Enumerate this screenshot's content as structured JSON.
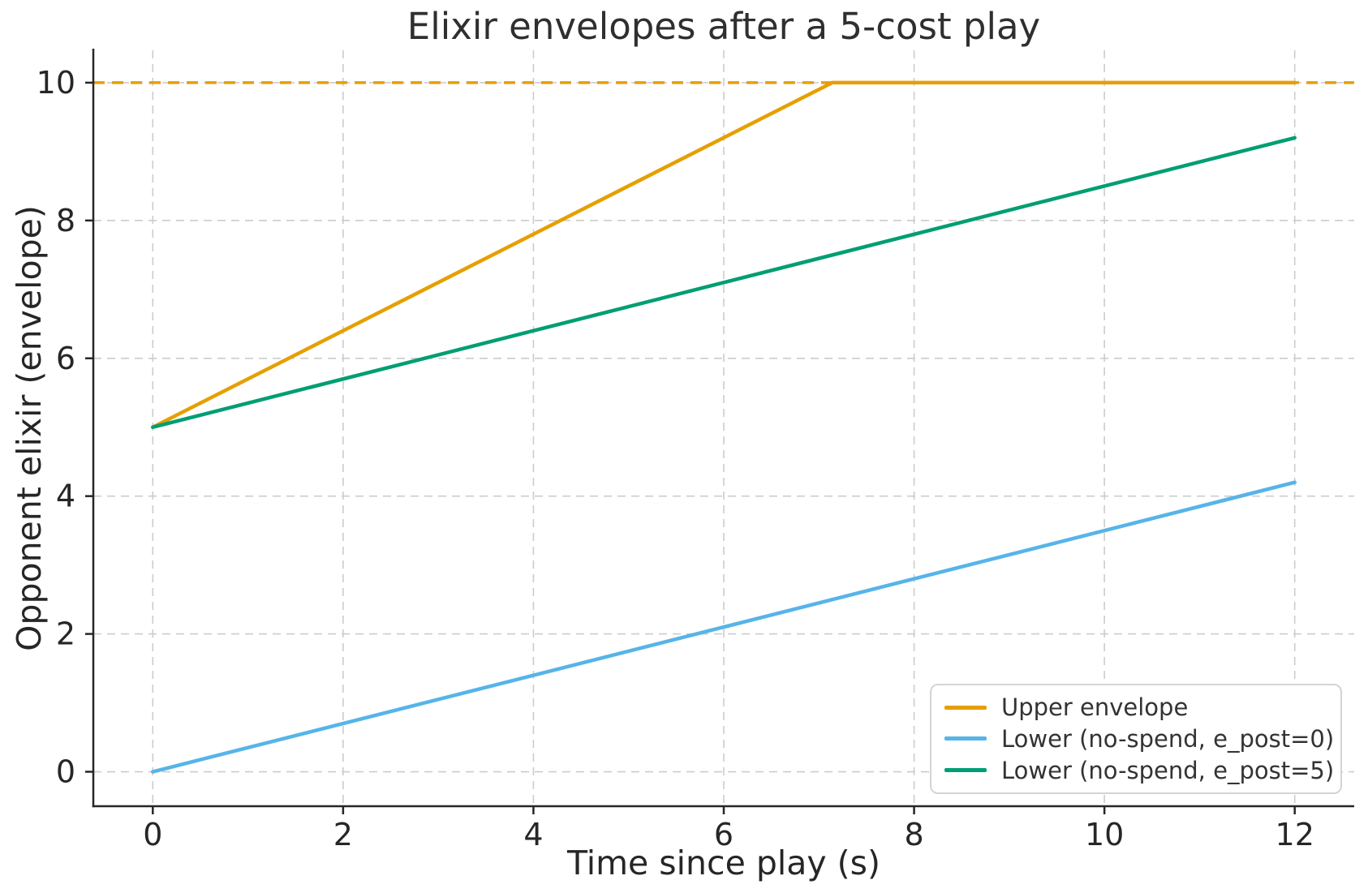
{
  "chart_data": {
    "type": "line",
    "title": "Elixir envelopes after a 5-cost play",
    "xlabel": "Time since play (s)",
    "ylabel": "Opponent elixir (envelope)",
    "xlim": [
      -0.625,
      12.625
    ],
    "ylim": [
      -0.5,
      10.47
    ],
    "xticks": [
      0,
      2,
      4,
      6,
      8,
      10,
      12
    ],
    "yticks": [
      0,
      2,
      4,
      6,
      8,
      10
    ],
    "grid": true,
    "grid_style": "dashed",
    "legend_position": "lower right",
    "cap_line": {
      "y": 10,
      "color": "#E69F00",
      "style": "dashed"
    },
    "series": [
      {
        "name": "Upper envelope",
        "color": "#E69F00",
        "style": "solid",
        "points": [
          [
            0,
            5
          ],
          [
            7.14,
            10
          ],
          [
            12,
            10
          ]
        ]
      },
      {
        "name": "Lower (no-spend, e_post=0)",
        "color": "#56B4E9",
        "style": "solid",
        "points": [
          [
            0,
            0
          ],
          [
            12,
            4.2
          ]
        ]
      },
      {
        "name": "Lower (no-spend, e_post=5)",
        "color": "#009E73",
        "style": "solid",
        "points": [
          [
            0,
            5
          ],
          [
            12,
            9.2
          ]
        ]
      }
    ]
  },
  "colors": {
    "grid": "#cccccc",
    "spine": "#262626",
    "tick_label": "#262626",
    "title": "#2f2f2f",
    "legend_border": "#d4d4d4",
    "background": "#ffffff"
  }
}
